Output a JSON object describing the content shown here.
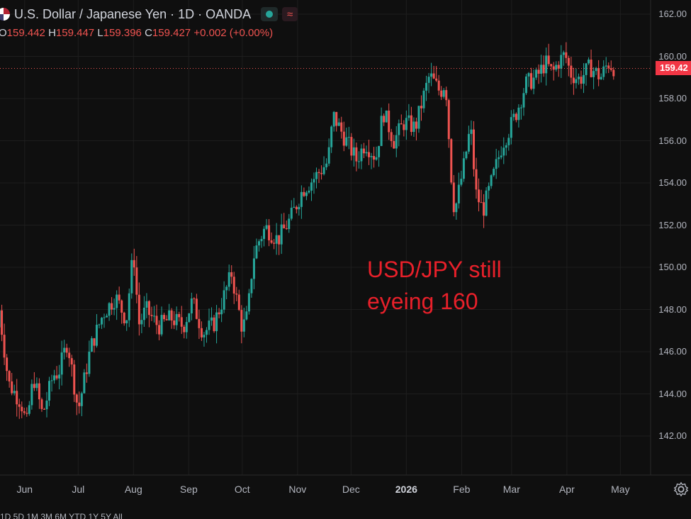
{
  "header": {
    "title": "U.S. Dollar / Japanese Yen · 1D · OANDA",
    "status_color": "#26a69a",
    "wave_icon": "≈"
  },
  "ohlc": {
    "o_label": "O",
    "o": "159.442",
    "h_label": "H",
    "h": "159.447",
    "l_label": "L",
    "l": "159.396",
    "c_label": "C",
    "c": "159.427",
    "change": "+0.002 (+0.00%)"
  },
  "price_tag": "159.42",
  "annotation": [
    "USD/JPY still",
    "eyeing 160"
  ],
  "colors": {
    "up": "#26a69a",
    "down": "#ef5350",
    "annotation": "#e8202a"
  },
  "footer_text": "1D 5D 1M 3M 6M YTD 1Y 5Y All",
  "chart_data": {
    "type": "candlestick",
    "symbol": "U.S. Dollar / Japanese Yen",
    "interval": "1D",
    "source": "OANDA",
    "y_range": [
      140.4,
      163.0
    ],
    "y_ticks": [
      "162.00",
      "160.00",
      "158.00",
      "156.00",
      "154.00",
      "152.00",
      "150.00",
      "148.00",
      "146.00",
      "144.00",
      "142.00"
    ],
    "x_ticks": [
      "Jun",
      "Jul",
      "Aug",
      "Sep",
      "Oct",
      "Nov",
      "Dec",
      "2026",
      "Feb",
      "Mar",
      "Apr",
      "May"
    ],
    "last_price": 159.427,
    "path": [
      [
        "2025-05-15",
        144.0
      ],
      [
        "2025-05-17",
        148.5
      ],
      [
        "2025-05-23",
        144.5
      ],
      [
        "2025-05-30",
        143.6
      ],
      [
        "2025-06-02",
        142.5
      ],
      [
        "2025-06-06",
        144.8
      ],
      [
        "2025-06-11",
        143.0
      ],
      [
        "2025-06-17",
        144.9
      ],
      [
        "2025-06-20",
        145.0
      ],
      [
        "2025-06-25",
        146.5
      ],
      [
        "2025-07-01",
        143.2
      ],
      [
        "2025-07-08",
        146.2
      ],
      [
        "2025-07-15",
        147.8
      ],
      [
        "2025-07-22",
        148.6
      ],
      [
        "2025-07-28",
        147.5
      ],
      [
        "2025-08-01",
        150.8
      ],
      [
        "2025-08-04",
        147.3
      ],
      [
        "2025-08-08",
        148.0
      ],
      [
        "2025-08-15",
        147.2
      ],
      [
        "2025-08-22",
        147.6
      ],
      [
        "2025-08-29",
        147.2
      ],
      [
        "2025-09-03",
        148.4
      ],
      [
        "2025-09-09",
        146.9
      ],
      [
        "2025-09-15",
        147.3
      ],
      [
        "2025-09-19",
        148.2
      ],
      [
        "2025-09-25",
        149.7
      ],
      [
        "2025-10-01",
        147.1
      ],
      [
        "2025-10-04",
        147.7
      ],
      [
        "2025-10-07",
        150.4
      ],
      [
        "2025-10-10",
        151.2
      ],
      [
        "2025-10-14",
        151.9
      ],
      [
        "2025-10-21",
        151.3
      ],
      [
        "2025-10-28",
        152.3
      ],
      [
        "2025-11-04",
        153.7
      ],
      [
        "2025-11-10",
        154.2
      ],
      [
        "2025-11-18",
        155.0
      ],
      [
        "2025-11-21",
        157.2
      ],
      [
        "2025-11-27",
        156.2
      ],
      [
        "2025-12-04",
        155.1
      ],
      [
        "2025-12-09",
        155.9
      ],
      [
        "2025-12-15",
        155.2
      ],
      [
        "2025-12-19",
        157.4
      ],
      [
        "2025-12-25",
        156.0
      ],
      [
        "2025-12-31",
        156.9
      ],
      [
        "2026-01-06",
        156.6
      ],
      [
        "2026-01-10",
        157.9
      ],
      [
        "2026-01-14",
        159.1
      ],
      [
        "2026-01-20",
        158.3
      ],
      [
        "2026-01-23",
        158.8
      ],
      [
        "2026-01-26",
        154.5
      ],
      [
        "2026-01-28",
        152.6
      ],
      [
        "2026-02-02",
        154.7
      ],
      [
        "2026-02-06",
        156.7
      ],
      [
        "2026-02-09",
        153.5
      ],
      [
        "2026-02-13",
        152.7
      ],
      [
        "2026-02-18",
        154.1
      ],
      [
        "2026-02-24",
        155.9
      ],
      [
        "2026-02-27",
        156.4
      ],
      [
        "2026-03-04",
        157.4
      ],
      [
        "2026-03-09",
        158.7
      ],
      [
        "2026-03-15",
        159.0
      ],
      [
        "2026-03-20",
        159.7
      ],
      [
        "2026-03-24",
        159.2
      ],
      [
        "2026-03-27",
        159.7
      ],
      [
        "2026-03-31",
        160.1
      ],
      [
        "2026-04-03",
        159.2
      ],
      [
        "2026-04-08",
        158.9
      ],
      [
        "2026-04-14",
        159.5
      ],
      [
        "2026-04-20",
        159.0
      ],
      [
        "2026-04-24",
        159.7
      ],
      [
        "2026-04-28",
        159.43
      ]
    ]
  }
}
